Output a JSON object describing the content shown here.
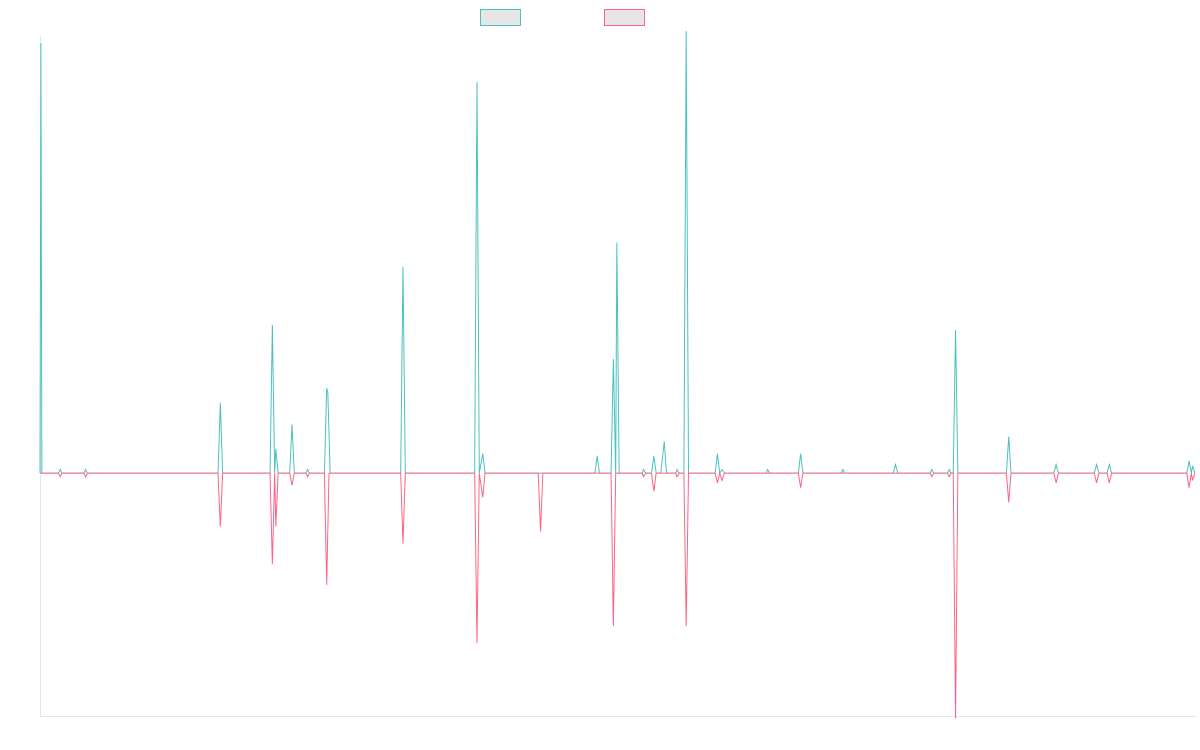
{
  "colors": {
    "series_a": "#4bc0c0",
    "series_b": "#ff6384",
    "axis": "#e6e6e6",
    "legend_fill": "#e6e6e6"
  },
  "chart_data": {
    "type": "line",
    "title": "",
    "xlabel": "",
    "ylabel": "",
    "grid": false,
    "legend": "top-center",
    "xlim": [
      0,
      1000
    ],
    "ylim": [
      -100,
      180
    ],
    "series": [
      {
        "color": "#4bc0c0",
        "points": [
          [
            0,
            0
          ],
          [
            0.8,
            177
          ],
          [
            1.6,
            0
          ],
          [
            16,
            0
          ],
          [
            17.5,
            1.5
          ],
          [
            19,
            0
          ],
          [
            38,
            0
          ],
          [
            39.5,
            1.5
          ],
          [
            41,
            0
          ],
          [
            154,
            0
          ],
          [
            156,
            29
          ],
          [
            158,
            0
          ],
          [
            199,
            0
          ],
          [
            201,
            61
          ],
          [
            203,
            0
          ],
          [
            204,
            10
          ],
          [
            206,
            0
          ],
          [
            216,
            0
          ],
          [
            218,
            20
          ],
          [
            220,
            0
          ],
          [
            230,
            0
          ],
          [
            231.5,
            1.5
          ],
          [
            233,
            0
          ],
          [
            246,
            0
          ],
          [
            248,
            35
          ],
          [
            249,
            33
          ],
          [
            251,
            0
          ],
          [
            312,
            0
          ],
          [
            314,
            85
          ],
          [
            316,
            0
          ],
          [
            376,
            0
          ],
          [
            378,
            161
          ],
          [
            380,
            0
          ],
          [
            383,
            8
          ],
          [
            385,
            0
          ],
          [
            431,
            0
          ],
          [
            433,
            0
          ],
          [
            435,
            0
          ],
          [
            480,
            0
          ],
          [
            482,
            7
          ],
          [
            484,
            0
          ],
          [
            494,
            0
          ],
          [
            496,
            47
          ],
          [
            498,
            0
          ],
          [
            499,
            95
          ],
          [
            501,
            0
          ],
          [
            521,
            0
          ],
          [
            522,
            1.5
          ],
          [
            524,
            0
          ],
          [
            529,
            0
          ],
          [
            531,
            7
          ],
          [
            533,
            0
          ],
          [
            537,
            0
          ],
          [
            540,
            13
          ],
          [
            542,
            0
          ],
          [
            550,
            0
          ],
          [
            551,
            1.5
          ],
          [
            553,
            0
          ],
          [
            557,
            0
          ],
          [
            559,
            182
          ],
          [
            561,
            0
          ],
          [
            584,
            0
          ],
          [
            586,
            8
          ],
          [
            588,
            0
          ],
          [
            590,
            1.5
          ],
          [
            592,
            0
          ],
          [
            628,
            0
          ],
          [
            629.5,
            1.5
          ],
          [
            631,
            0
          ],
          [
            656,
            0
          ],
          [
            658,
            8
          ],
          [
            660,
            0
          ],
          [
            693,
            0
          ],
          [
            694.5,
            1.5
          ],
          [
            696,
            0
          ],
          [
            738,
            0
          ],
          [
            740,
            3.5
          ],
          [
            742,
            0
          ],
          [
            770,
            0
          ],
          [
            771.5,
            1.5
          ],
          [
            773,
            0
          ],
          [
            785,
            0
          ],
          [
            786.5,
            1.5
          ],
          [
            788,
            0
          ],
          [
            790,
            0
          ],
          [
            792,
            59
          ],
          [
            794,
            0
          ],
          [
            836,
            0
          ],
          [
            838,
            15
          ],
          [
            840,
            0
          ],
          [
            877,
            0
          ],
          [
            879,
            3.5
          ],
          [
            881,
            0
          ],
          [
            912,
            0
          ],
          [
            914,
            3.5
          ],
          [
            916,
            0
          ],
          [
            923,
            0
          ],
          [
            925,
            3.5
          ],
          [
            927,
            0
          ],
          [
            992,
            0
          ],
          [
            994,
            5
          ],
          [
            996,
            0
          ],
          [
            997,
            3
          ],
          [
            999,
            0
          ]
        ]
      },
      {
        "color": "#ff6384",
        "points": [
          [
            0,
            0
          ],
          [
            16,
            0
          ],
          [
            17.5,
            -1.5
          ],
          [
            19,
            0
          ],
          [
            38,
            0
          ],
          [
            39.5,
            -1.5
          ],
          [
            41,
            0
          ],
          [
            154,
            0
          ],
          [
            156,
            -22
          ],
          [
            158,
            0
          ],
          [
            199,
            0
          ],
          [
            201,
            -37.5
          ],
          [
            203,
            0
          ],
          [
            204,
            -22
          ],
          [
            206,
            0
          ],
          [
            216,
            0
          ],
          [
            218,
            -5
          ],
          [
            220,
            0
          ],
          [
            230,
            0
          ],
          [
            231.5,
            -1.5
          ],
          [
            233,
            0
          ],
          [
            246,
            0
          ],
          [
            248,
            -46
          ],
          [
            250,
            0
          ],
          [
            312,
            0
          ],
          [
            314,
            -29
          ],
          [
            316,
            0
          ],
          [
            376,
            0
          ],
          [
            378,
            -70
          ],
          [
            380,
            0
          ],
          [
            383,
            -10
          ],
          [
            385,
            0
          ],
          [
            431,
            0
          ],
          [
            433,
            -24
          ],
          [
            435,
            0
          ],
          [
            494,
            0
          ],
          [
            496,
            -63
          ],
          [
            498,
            0
          ],
          [
            521,
            0
          ],
          [
            522,
            -1.5
          ],
          [
            524,
            0
          ],
          [
            529,
            0
          ],
          [
            531,
            -7.5
          ],
          [
            533,
            0
          ],
          [
            550,
            0
          ],
          [
            551,
            -1.5
          ],
          [
            553,
            0
          ],
          [
            557,
            0
          ],
          [
            559,
            -63
          ],
          [
            561,
            0
          ],
          [
            584,
            0
          ],
          [
            586,
            -4
          ],
          [
            588,
            0
          ],
          [
            590,
            -3
          ],
          [
            592,
            0
          ],
          [
            656,
            0
          ],
          [
            658,
            -6
          ],
          [
            660,
            0
          ],
          [
            770,
            0
          ],
          [
            771.5,
            -1.5
          ],
          [
            773,
            0
          ],
          [
            785,
            0
          ],
          [
            786.5,
            -1.5
          ],
          [
            788,
            0
          ],
          [
            790,
            0
          ],
          [
            792,
            -101
          ],
          [
            794,
            0
          ],
          [
            836,
            0
          ],
          [
            838,
            -12
          ],
          [
            840,
            0
          ],
          [
            877,
            0
          ],
          [
            879,
            -4
          ],
          [
            881,
            0
          ],
          [
            912,
            0
          ],
          [
            914,
            -4
          ],
          [
            916,
            0
          ],
          [
            923,
            0
          ],
          [
            925,
            -4
          ],
          [
            927,
            0
          ],
          [
            992,
            0
          ],
          [
            994,
            -6
          ],
          [
            996,
            0
          ],
          [
            997,
            -3
          ],
          [
            999,
            0
          ]
        ]
      }
    ]
  }
}
